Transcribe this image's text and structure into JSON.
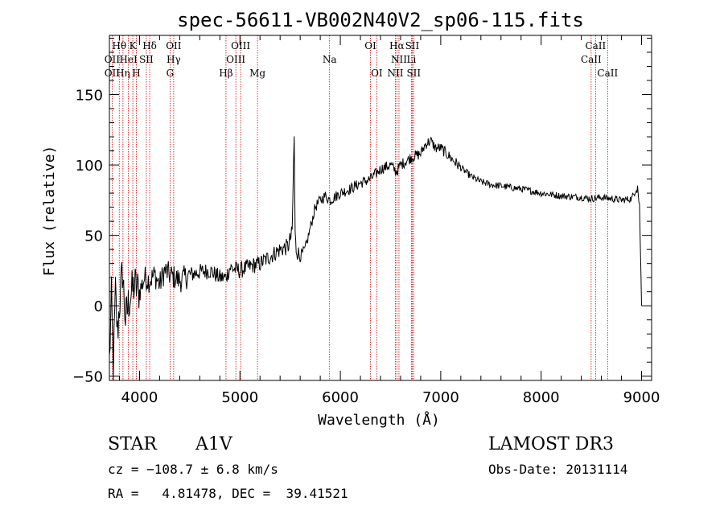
{
  "chart_data": {
    "type": "line",
    "title": "spec-56611-VB002N40V2_sp06-115.fits",
    "xlabel": "Wavelength (Å)",
    "ylabel": "Flux (relative)",
    "xlim": [
      3700,
      9100
    ],
    "ylim": [
      -53,
      192
    ],
    "x_ticks": [
      4000,
      5000,
      6000,
      7000,
      8000,
      9000
    ],
    "y_ticks": [
      -50,
      0,
      50,
      100,
      150
    ],
    "x_tick_labels": [
      "4000",
      "5000",
      "6000",
      "7000",
      "8000",
      "9000"
    ],
    "y_tick_labels": [
      "−50",
      "0",
      "50",
      "100",
      "150"
    ],
    "spectrum": {
      "name": "flux",
      "x": [
        3700,
        3720,
        3740,
        3760,
        3780,
        3800,
        3830,
        3860,
        3900,
        3950,
        4000,
        4050,
        4100,
        4150,
        4200,
        4250,
        4300,
        4350,
        4400,
        4450,
        4500,
        4600,
        4700,
        4800,
        4860,
        4900,
        5000,
        5100,
        5200,
        5300,
        5400,
        5480,
        5520,
        5540,
        5550,
        5560,
        5600,
        5650,
        5700,
        5750,
        5800,
        5850,
        5900,
        6000,
        6100,
        6200,
        6300,
        6400,
        6500,
        6560,
        6600,
        6700,
        6800,
        6850,
        6900,
        6950,
        7000,
        7100,
        7200,
        7300,
        7400,
        7500,
        7600,
        7800,
        8000,
        8200,
        8400,
        8500,
        8600,
        8700,
        8800,
        8900,
        8960,
        8980,
        9000
      ],
      "y": [
        -40,
        5,
        -45,
        10,
        -20,
        0,
        25,
        -10,
        5,
        15,
        10,
        20,
        18,
        22,
        15,
        25,
        22,
        20,
        18,
        20,
        22,
        24,
        25,
        20,
        20,
        27,
        25,
        28,
        30,
        35,
        40,
        42,
        52,
        120,
        50,
        40,
        35,
        40,
        55,
        70,
        75,
        78,
        75,
        80,
        83,
        87,
        90,
        97,
        100,
        95,
        100,
        105,
        108,
        115,
        117,
        112,
        112,
        105,
        98,
        92,
        88,
        86,
        85,
        83,
        80,
        78,
        77,
        76,
        77,
        76,
        75,
        76,
        85,
        70,
        0
      ]
    },
    "spectral_lines": [
      {
        "label": "Hθ",
        "x": 3798,
        "row": 1
      },
      {
        "label": "K",
        "x": 3933,
        "row": 1
      },
      {
        "label": "Hδ",
        "x": 4101,
        "row": 1
      },
      {
        "label": "OII",
        "x": 4340,
        "row": 1
      },
      {
        "label": "OIII",
        "x": 5007,
        "row": 1
      },
      {
        "label": "OI",
        "x": 6300,
        "row": 1
      },
      {
        "label": "Hα",
        "x": 6563,
        "row": 1
      },
      {
        "label": "SII",
        "x": 6716,
        "row": 1
      },
      {
        "label": "CaII",
        "x": 8542,
        "row": 1
      },
      {
        "label": "OII",
        "x": 3727,
        "row": 2
      },
      {
        "label": "HeI",
        "x": 3889,
        "row": 2
      },
      {
        "label": "SII",
        "x": 4068,
        "row": 2
      },
      {
        "label": "Hγ",
        "x": 4340,
        "row": 2
      },
      {
        "label": "OIII",
        "x": 4959,
        "row": 2
      },
      {
        "label": "Na",
        "x": 5893,
        "row": 2
      },
      {
        "label": "NII",
        "x": 6584,
        "row": 2
      },
      {
        "label": "Li",
        "x": 6708,
        "row": 2
      },
      {
        "label": "CaII",
        "x": 8498,
        "row": 2
      },
      {
        "label": "OII",
        "x": 3727,
        "row": 3
      },
      {
        "label": "Hη",
        "x": 3835,
        "row": 3
      },
      {
        "label": "H",
        "x": 3968,
        "row": 3
      },
      {
        "label": "G",
        "x": 4304,
        "row": 3
      },
      {
        "label": "Hβ",
        "x": 4861,
        "row": 3
      },
      {
        "label": "Mg",
        "x": 5175,
        "row": 3
      },
      {
        "label": "OI",
        "x": 6363,
        "row": 3
      },
      {
        "label": "NII",
        "x": 6548,
        "row": 3
      },
      {
        "label": "SII",
        "x": 6731,
        "row": 3
      },
      {
        "label": "CaII",
        "x": 8662,
        "row": 3
      }
    ]
  },
  "info": {
    "object_class": "STAR",
    "subclass": "A1V",
    "survey": "LAMOST DR3",
    "redshift": "cz = −108.7 ± 6.8 km/s",
    "obs_date": "Obs-Date: 20131114",
    "coords": "RA =   4.81478, DEC =  39.41521"
  },
  "colors": {
    "line_marker": "#cc0000",
    "spectrum": "#000000"
  }
}
